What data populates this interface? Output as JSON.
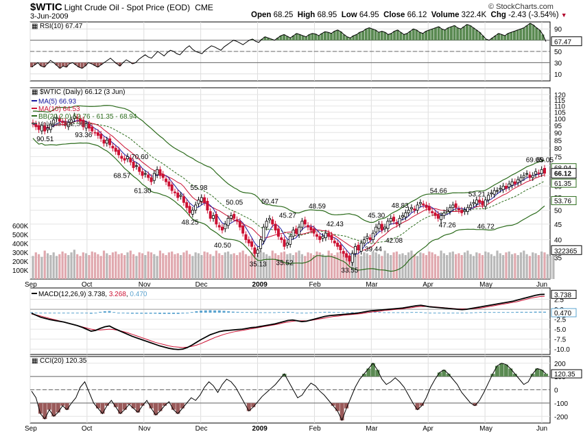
{
  "header": {
    "symbol": "$WTIC",
    "name": "Light Crude Oil - Spot Price (EOD)",
    "exchange": "CME",
    "date": "3-Jun-2009",
    "open_label": "Open",
    "open": "68.25",
    "high_label": "High",
    "high": "68.95",
    "low_label": "Low",
    "low": "64.95",
    "close_label": "Close",
    "close": "66.12",
    "volume_label": "Volume",
    "volume": "322.4K",
    "chg_label": "Chg",
    "chg": "-2.43 (-3.54%)",
    "copyright": "© StockCharts.com"
  },
  "colors": {
    "up": "#000000",
    "down": "#cc1133",
    "ma5": "#1a1aa0",
    "ma10": "#cc1133",
    "bb": "#2a6a1a",
    "volUp": "#b8b8b8",
    "volDown": "#e0a8ae",
    "macdHist": "#5aa3cf",
    "oscFillPos": "#5a8a52",
    "oscFillNeg": "#9a5a5a"
  },
  "chart_data": [
    {
      "type": "line",
      "panel": "rsi",
      "title": "RSI(10) 67.47",
      "current": "67.47",
      "yticks": [
        "90",
        "70",
        "50",
        "30",
        "10"
      ],
      "levels": [
        70,
        30
      ],
      "series": [
        {
          "name": "RSI(10)",
          "values": [
            22,
            26,
            30,
            24,
            22,
            28,
            34,
            30,
            25,
            20,
            24,
            22,
            28,
            30,
            26,
            22,
            20,
            24,
            30,
            28,
            25,
            22,
            26,
            30,
            34,
            38,
            33,
            28,
            24,
            30,
            35,
            32,
            28,
            30,
            36,
            40,
            44,
            40,
            38,
            44,
            50,
            46,
            42,
            48,
            52,
            50,
            46,
            44,
            50,
            56,
            60,
            54,
            50,
            48,
            46,
            52,
            56,
            60,
            58,
            55,
            52,
            58,
            62,
            66,
            70,
            68,
            65,
            62,
            66,
            70,
            72,
            68,
            66,
            72,
            76,
            74,
            72,
            70,
            74,
            78,
            80,
            77,
            74,
            78,
            82,
            80,
            78,
            76,
            80,
            82,
            81,
            78,
            82,
            85,
            84,
            82,
            86,
            88,
            85,
            80,
            76,
            74,
            78,
            80,
            84,
            86,
            90,
            92,
            90,
            88,
            84,
            86,
            84,
            80,
            82,
            86,
            88,
            84,
            80,
            82,
            86,
            90,
            88,
            84,
            82,
            86,
            88,
            90,
            92,
            94,
            90,
            88,
            92,
            94,
            96,
            92,
            90,
            94,
            98,
            96,
            92,
            88,
            84,
            78,
            72,
            70,
            74,
            78,
            82,
            80,
            78,
            82,
            84,
            86,
            88,
            90,
            92,
            96,
            100,
            97,
            92,
            88,
            80,
            67.47
          ]
        }
      ]
    },
    {
      "type": "candlestick",
      "panel": "price",
      "title": "$WTIC (Daily) 66.12 (3 Jun)",
      "legend": [
        "MA(5) 66.93",
        "MA(10) 64.53",
        "BB(20,2.0) 53.76 - 61.35 - 68.94",
        "Volume 322,365"
      ],
      "right_labels": [
        "69.05",
        "68.94",
        "66.12",
        "61.35",
        "53.76"
      ],
      "ylog": true,
      "ylim": [
        30,
        125
      ],
      "yticks": [
        "120",
        "115",
        "110",
        "105",
        "100",
        "95",
        "90",
        "85",
        "80",
        "75",
        "70",
        "65",
        "60",
        "55",
        "50",
        "45",
        "40",
        "35"
      ],
      "volume_ticks": [
        "600K",
        "500K",
        "400K",
        "300K",
        "200K",
        "100K"
      ],
      "volume_current": "322365",
      "xlabels": [
        "Sep",
        "Oct",
        "Nov",
        "Dec",
        "2009",
        "Feb",
        "Mar",
        "Apr",
        "May",
        "Jun"
      ],
      "annotations": [
        {
          "text": "90.51",
          "index": 4,
          "value": 90.51,
          "pos": "below"
        },
        {
          "text": "93.36",
          "index": 17,
          "value": 93.36,
          "pos": "below"
        },
        {
          "text": "70.60",
          "index": 36,
          "value": 70.6,
          "pos": "above"
        },
        {
          "text": "68.57",
          "index": 30,
          "value": 68.57,
          "pos": "below"
        },
        {
          "text": "61.30",
          "index": 37,
          "value": 61.3,
          "pos": "below"
        },
        {
          "text": "55.98",
          "index": 56,
          "value": 55.98,
          "pos": "above"
        },
        {
          "text": "48.25",
          "index": 53,
          "value": 48.25,
          "pos": "below"
        },
        {
          "text": "50.05",
          "index": 68,
          "value": 50.05,
          "pos": "above"
        },
        {
          "text": "40.50",
          "index": 64,
          "value": 40.5,
          "pos": "below"
        },
        {
          "text": "50.47",
          "index": 80,
          "value": 50.47,
          "pos": "above"
        },
        {
          "text": "45.27",
          "index": 86,
          "value": 45.27,
          "pos": "above"
        },
        {
          "text": "35.13",
          "index": 76,
          "value": 35.13,
          "pos": "below"
        },
        {
          "text": "35.52",
          "index": 85,
          "value": 35.52,
          "pos": "below"
        },
        {
          "text": "48.59",
          "index": 96,
          "value": 48.59,
          "pos": "above"
        },
        {
          "text": "42.43",
          "index": 102,
          "value": 42.43,
          "pos": "above"
        },
        {
          "text": "33.55",
          "index": 107,
          "value": 33.55,
          "pos": "below"
        },
        {
          "text": "45.30",
          "index": 116,
          "value": 45.3,
          "pos": "above"
        },
        {
          "text": "39.44",
          "index": 115,
          "value": 39.44,
          "pos": "below"
        },
        {
          "text": "48.83",
          "index": 124,
          "value": 48.83,
          "pos": "above"
        },
        {
          "text": "42.08",
          "index": 122,
          "value": 42.08,
          "pos": "below"
        },
        {
          "text": "54.66",
          "index": 137,
          "value": 54.66,
          "pos": "above"
        },
        {
          "text": "47.26",
          "index": 140,
          "value": 47.26,
          "pos": "below"
        },
        {
          "text": "53.21",
          "index": 150,
          "value": 53.21,
          "pos": "above"
        },
        {
          "text": "46.72",
          "index": 153,
          "value": 46.72,
          "pos": "below"
        },
        {
          "text": "69.05",
          "index": 180,
          "value": 69.05,
          "pos": "above"
        }
      ],
      "closes": [
        96,
        94,
        92,
        95,
        91,
        93,
        96,
        99,
        101,
        98,
        97,
        95,
        97,
        99,
        102,
        100,
        98,
        94,
        96,
        93,
        91,
        90,
        88,
        86,
        83,
        85,
        82,
        80,
        78,
        76,
        74,
        73,
        75,
        72,
        69,
        70,
        67,
        65,
        66,
        64,
        62,
        66,
        68,
        65,
        64,
        62,
        60,
        58,
        57,
        55,
        56,
        53,
        51,
        49,
        50,
        52,
        54,
        55,
        53,
        50,
        47,
        48,
        45,
        44,
        43,
        45,
        47,
        48,
        47,
        46,
        44,
        42,
        40,
        39,
        38,
        36,
        37,
        40,
        44,
        46,
        47,
        45,
        43,
        41,
        40,
        38,
        39,
        41,
        43,
        42,
        44,
        46,
        45,
        44,
        43,
        42,
        41,
        40,
        41,
        42,
        41,
        40,
        39,
        38,
        37,
        36,
        35,
        34,
        36,
        38,
        37,
        39,
        40,
        41,
        40,
        42,
        44,
        45,
        43,
        44,
        46,
        47,
        46,
        45,
        47,
        48,
        49,
        50,
        51,
        50,
        52,
        53,
        52,
        51,
        50,
        49,
        48,
        47,
        48,
        49,
        50,
        51,
        52,
        51,
        50,
        49,
        50,
        51,
        52,
        53,
        54,
        53,
        52,
        54,
        56,
        57,
        58,
        58,
        59,
        60,
        59,
        61,
        62,
        61,
        63,
        64,
        65,
        66,
        64,
        65,
        67,
        66,
        68,
        66.12
      ],
      "volume": [
        260,
        300,
        280,
        250,
        320,
        290,
        270,
        300,
        260,
        280,
        310,
        290,
        270,
        300,
        330,
        280,
        260,
        300,
        290,
        270,
        310,
        300,
        280,
        260,
        320,
        290,
        270,
        300,
        310,
        280,
        290,
        270,
        300,
        320,
        280,
        260,
        300,
        290,
        270,
        310,
        300,
        280,
        260,
        320,
        290,
        270,
        300,
        310,
        280,
        290,
        270,
        300,
        320,
        280,
        260,
        300,
        290,
        270,
        310,
        300,
        280,
        260,
        320,
        290,
        270,
        300,
        310,
        280,
        290,
        270,
        300,
        320,
        280,
        260,
        300,
        290,
        270,
        310,
        300,
        280,
        260,
        320,
        290,
        270,
        300,
        310,
        280,
        290,
        270,
        300,
        320,
        280,
        260,
        300,
        290,
        270,
        310,
        300,
        280,
        260,
        320,
        290,
        270,
        300,
        310,
        280,
        290,
        270,
        300,
        320,
        280,
        260,
        300,
        290,
        270,
        310,
        300,
        280,
        260,
        320,
        290,
        270,
        300,
        310,
        280,
        290,
        270,
        300,
        320,
        280,
        260,
        300,
        290,
        270,
        310,
        300,
        280,
        260,
        320,
        290,
        270,
        300,
        310,
        280,
        290,
        270,
        300,
        320,
        280,
        260,
        300,
        290,
        270,
        310,
        300,
        280,
        260,
        320,
        290,
        270,
        300,
        310,
        280,
        290,
        270,
        300,
        320,
        280,
        260,
        300,
        290,
        270,
        310,
        300,
        280,
        260,
        322
      ]
    },
    {
      "type": "line",
      "panel": "macd",
      "title": "MACD(12,26,9) 3.738, 3.268, 0.470",
      "title_parts": [
        "MACD(12,26,9) 3.738, ",
        "3.268",
        ", ",
        "0.470"
      ],
      "right_labels": [
        "3.738",
        "0.470"
      ],
      "yticks": [
        "2.5",
        "0.0",
        "-2.5",
        "-5.0",
        "-7.5",
        "-10.0"
      ],
      "ylim": [
        -11,
        5
      ],
      "series": [
        {
          "name": "MACD",
          "values": [
            -1,
            -1.5,
            -2,
            -2.3,
            -2.6,
            -2.8,
            -3,
            -3.2,
            -3.5,
            -3.8,
            -4.1,
            -4.5,
            -5,
            -5.5,
            -5.3,
            -4.8,
            -4.4,
            -4.2,
            -4.8,
            -5.3,
            -5.8,
            -6.3,
            -6.8,
            -7.2,
            -7.6,
            -8,
            -8.4,
            -8.8,
            -9.2,
            -9.5,
            -9.8,
            -10,
            -10.1,
            -10,
            -9.6,
            -9,
            -8.3,
            -7.6,
            -7,
            -6.4,
            -6,
            -5.6,
            -5.4,
            -5.3,
            -5.2,
            -5.1,
            -5,
            -4.8,
            -4.6,
            -4.5,
            -4.3,
            -4.1,
            -3.9,
            -3.7,
            -3.4,
            -3.1,
            -2.8,
            -2.7,
            -2.9,
            -3.1,
            -3.0,
            -2.7,
            -2.4,
            -2.1,
            -1.8,
            -1.6,
            -1.5,
            -1.4,
            -1.3,
            -1.2,
            -1.1,
            -1.0,
            -0.8,
            -0.6,
            -0.4,
            -0.3,
            -0.2,
            -0.1,
            0,
            0.1,
            0.2,
            0.3,
            0.5,
            0.7,
            0.9,
            1.0,
            0.8,
            0.6,
            0.5,
            0.4,
            0.3,
            0.2,
            0.1,
            0.0,
            -0.1,
            0.0,
            0.2,
            0.4,
            0.6,
            0.8,
            1.0,
            1.2,
            1.4,
            1.6,
            1.8,
            2.0,
            2.3,
            2.6,
            2.9,
            3.2,
            3.5,
            3.7,
            3.738
          ]
        },
        {
          "name": "Signal",
          "values": [
            -1.2,
            -1.4,
            -1.7,
            -2,
            -2.3,
            -2.6,
            -2.9,
            -3.2,
            -3.5,
            -3.8,
            -4.1,
            -4.4,
            -4.7,
            -5,
            -5.2,
            -5.2,
            -5.1,
            -5,
            -5.1,
            -5.3,
            -5.6,
            -5.9,
            -6.3,
            -6.7,
            -7.1,
            -7.5,
            -7.9,
            -8.3,
            -8.6,
            -8.9,
            -9.2,
            -9.4,
            -9.5,
            -9.6,
            -9.5,
            -9.3,
            -9,
            -8.6,
            -8.1,
            -7.6,
            -7.1,
            -6.7,
            -6.3,
            -6,
            -5.7,
            -5.5,
            -5.3,
            -5.1,
            -4.9,
            -4.7,
            -4.5,
            -4.3,
            -4.1,
            -3.9,
            -3.7,
            -3.4,
            -3.2,
            -3.0,
            -2.9,
            -2.9,
            -2.9,
            -2.8,
            -2.6,
            -2.4,
            -2.2,
            -2.0,
            -1.8,
            -1.7,
            -1.5,
            -1.4,
            -1.3,
            -1.2,
            -1.1,
            -0.9,
            -0.7,
            -0.6,
            -0.5,
            -0.3,
            -0.2,
            -0.1,
            0,
            0.1,
            0.3,
            0.4,
            0.6,
            0.7,
            0.7,
            0.7,
            0.6,
            0.5,
            0.4,
            0.3,
            0.2,
            0.1,
            0.1,
            0.1,
            0.1,
            0.2,
            0.3,
            0.5,
            0.7,
            0.9,
            1.1,
            1.3,
            1.5,
            1.7,
            1.9,
            2.2,
            2.5,
            2.8,
            3.0,
            3.2,
            3.268
          ]
        }
      ]
    },
    {
      "type": "line",
      "panel": "cci",
      "title": "CCI(20) 120.35",
      "current": "120.35",
      "yticks": [
        "200",
        "100",
        "0",
        "-100",
        "-200"
      ],
      "ylim": [
        -240,
        240
      ],
      "levels": [
        100,
        -100
      ],
      "series": [
        {
          "name": "CCI(20)",
          "values": [
            -10,
            -60,
            -180,
            -220,
            -150,
            -200,
            -170,
            -120,
            -150,
            -100,
            -60,
            20,
            60,
            -20,
            -100,
            -140,
            -180,
            -120,
            -80,
            -130,
            -180,
            -150,
            -110,
            -140,
            -170,
            -120,
            -80,
            -140,
            -190,
            -160,
            -120,
            -90,
            -150,
            -180,
            -140,
            -100,
            -60,
            -80,
            -40,
            20,
            60,
            30,
            -20,
            40,
            80,
            60,
            20,
            -40,
            -100,
            -160,
            -130,
            -90,
            -50,
            -20,
            10,
            40,
            80,
            120,
            60,
            0,
            -60,
            -40,
            10,
            50,
            30,
            -10,
            -40,
            -80,
            -120,
            -160,
            -230,
            -140,
            -60,
            20,
            80,
            120,
            160,
            200,
            150,
            80,
            40,
            60,
            90,
            60,
            20,
            -40,
            -100,
            -150,
            -120,
            -60,
            20,
            80,
            130,
            150,
            120,
            80,
            40,
            -20,
            -60,
            -100,
            -120,
            -80,
            -20,
            50,
            120,
            180,
            200,
            190,
            160,
            120,
            80,
            40,
            60,
            120,
            160,
            150,
            120.35
          ]
        }
      ]
    }
  ]
}
